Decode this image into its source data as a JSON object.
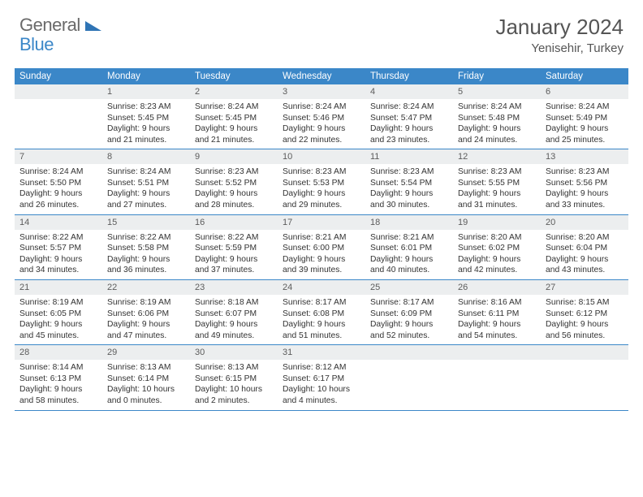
{
  "brand": {
    "word1": "General",
    "word2": "Blue",
    "triangle_color": "#2f74b5"
  },
  "title": {
    "month_year": "January 2024",
    "location": "Yenisehir, Turkey"
  },
  "colors": {
    "header_bg": "#3b87c8",
    "header_text": "#ffffff",
    "daynum_bg": "#eceeef",
    "rule": "#3b87c8",
    "body_text": "#333333"
  },
  "dow": [
    "Sunday",
    "Monday",
    "Tuesday",
    "Wednesday",
    "Thursday",
    "Friday",
    "Saturday"
  ],
  "weeks": [
    [
      null,
      {
        "n": "1",
        "sr": "8:23 AM",
        "ss": "5:45 PM",
        "dl": "9 hours and 21 minutes."
      },
      {
        "n": "2",
        "sr": "8:24 AM",
        "ss": "5:45 PM",
        "dl": "9 hours and 21 minutes."
      },
      {
        "n": "3",
        "sr": "8:24 AM",
        "ss": "5:46 PM",
        "dl": "9 hours and 22 minutes."
      },
      {
        "n": "4",
        "sr": "8:24 AM",
        "ss": "5:47 PM",
        "dl": "9 hours and 23 minutes."
      },
      {
        "n": "5",
        "sr": "8:24 AM",
        "ss": "5:48 PM",
        "dl": "9 hours and 24 minutes."
      },
      {
        "n": "6",
        "sr": "8:24 AM",
        "ss": "5:49 PM",
        "dl": "9 hours and 25 minutes."
      }
    ],
    [
      {
        "n": "7",
        "sr": "8:24 AM",
        "ss": "5:50 PM",
        "dl": "9 hours and 26 minutes."
      },
      {
        "n": "8",
        "sr": "8:24 AM",
        "ss": "5:51 PM",
        "dl": "9 hours and 27 minutes."
      },
      {
        "n": "9",
        "sr": "8:23 AM",
        "ss": "5:52 PM",
        "dl": "9 hours and 28 minutes."
      },
      {
        "n": "10",
        "sr": "8:23 AM",
        "ss": "5:53 PM",
        "dl": "9 hours and 29 minutes."
      },
      {
        "n": "11",
        "sr": "8:23 AM",
        "ss": "5:54 PM",
        "dl": "9 hours and 30 minutes."
      },
      {
        "n": "12",
        "sr": "8:23 AM",
        "ss": "5:55 PM",
        "dl": "9 hours and 31 minutes."
      },
      {
        "n": "13",
        "sr": "8:23 AM",
        "ss": "5:56 PM",
        "dl": "9 hours and 33 minutes."
      }
    ],
    [
      {
        "n": "14",
        "sr": "8:22 AM",
        "ss": "5:57 PM",
        "dl": "9 hours and 34 minutes."
      },
      {
        "n": "15",
        "sr": "8:22 AM",
        "ss": "5:58 PM",
        "dl": "9 hours and 36 minutes."
      },
      {
        "n": "16",
        "sr": "8:22 AM",
        "ss": "5:59 PM",
        "dl": "9 hours and 37 minutes."
      },
      {
        "n": "17",
        "sr": "8:21 AM",
        "ss": "6:00 PM",
        "dl": "9 hours and 39 minutes."
      },
      {
        "n": "18",
        "sr": "8:21 AM",
        "ss": "6:01 PM",
        "dl": "9 hours and 40 minutes."
      },
      {
        "n": "19",
        "sr": "8:20 AM",
        "ss": "6:02 PM",
        "dl": "9 hours and 42 minutes."
      },
      {
        "n": "20",
        "sr": "8:20 AM",
        "ss": "6:04 PM",
        "dl": "9 hours and 43 minutes."
      }
    ],
    [
      {
        "n": "21",
        "sr": "8:19 AM",
        "ss": "6:05 PM",
        "dl": "9 hours and 45 minutes."
      },
      {
        "n": "22",
        "sr": "8:19 AM",
        "ss": "6:06 PM",
        "dl": "9 hours and 47 minutes."
      },
      {
        "n": "23",
        "sr": "8:18 AM",
        "ss": "6:07 PM",
        "dl": "9 hours and 49 minutes."
      },
      {
        "n": "24",
        "sr": "8:17 AM",
        "ss": "6:08 PM",
        "dl": "9 hours and 51 minutes."
      },
      {
        "n": "25",
        "sr": "8:17 AM",
        "ss": "6:09 PM",
        "dl": "9 hours and 52 minutes."
      },
      {
        "n": "26",
        "sr": "8:16 AM",
        "ss": "6:11 PM",
        "dl": "9 hours and 54 minutes."
      },
      {
        "n": "27",
        "sr": "8:15 AM",
        "ss": "6:12 PM",
        "dl": "9 hours and 56 minutes."
      }
    ],
    [
      {
        "n": "28",
        "sr": "8:14 AM",
        "ss": "6:13 PM",
        "dl": "9 hours and 58 minutes."
      },
      {
        "n": "29",
        "sr": "8:13 AM",
        "ss": "6:14 PM",
        "dl": "10 hours and 0 minutes."
      },
      {
        "n": "30",
        "sr": "8:13 AM",
        "ss": "6:15 PM",
        "dl": "10 hours and 2 minutes."
      },
      {
        "n": "31",
        "sr": "8:12 AM",
        "ss": "6:17 PM",
        "dl": "10 hours and 4 minutes."
      },
      null,
      null,
      null
    ]
  ],
  "labels": {
    "sunrise": "Sunrise:",
    "sunset": "Sunset:",
    "daylight": "Daylight:"
  }
}
